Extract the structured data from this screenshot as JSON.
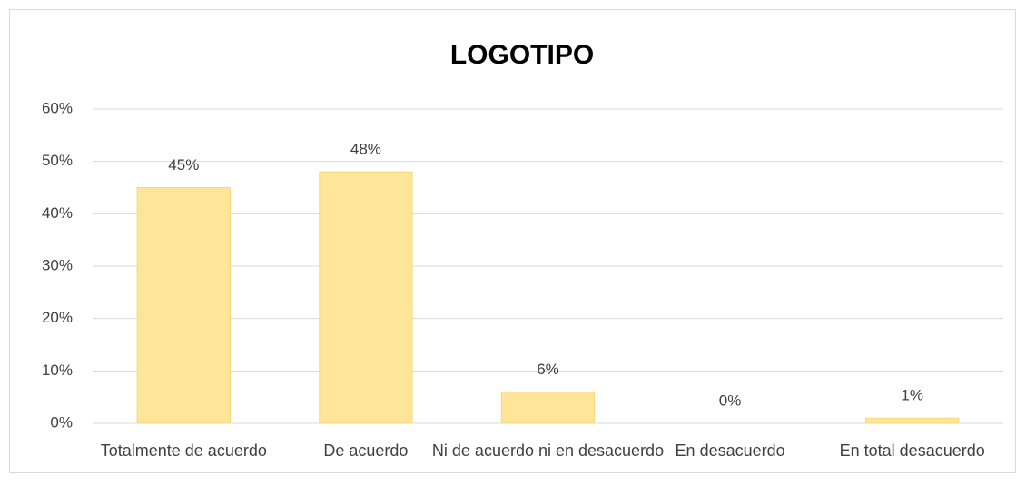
{
  "chart_data": {
    "type": "bar",
    "title": "LOGOTIPO",
    "categories": [
      "Totalmente de acuerdo",
      "De acuerdo",
      "Ni de acuerdo ni en desacuerdo",
      "En desacuerdo",
      "En total desacuerdo"
    ],
    "values": [
      45,
      48,
      6,
      0,
      1
    ],
    "value_labels": [
      "45%",
      "48%",
      "6%",
      "0%",
      "1%"
    ],
    "color": "#fee599",
    "ylim": [
      0,
      60
    ],
    "yticks": [
      {
        "value": 0,
        "label": "0%"
      },
      {
        "value": 10,
        "label": "10%"
      },
      {
        "value": 20,
        "label": "20%"
      },
      {
        "value": 30,
        "label": "30%"
      },
      {
        "value": 40,
        "label": "40%"
      },
      {
        "value": 50,
        "label": "50%"
      },
      {
        "value": 60,
        "label": "60%"
      }
    ],
    "grid": true
  }
}
